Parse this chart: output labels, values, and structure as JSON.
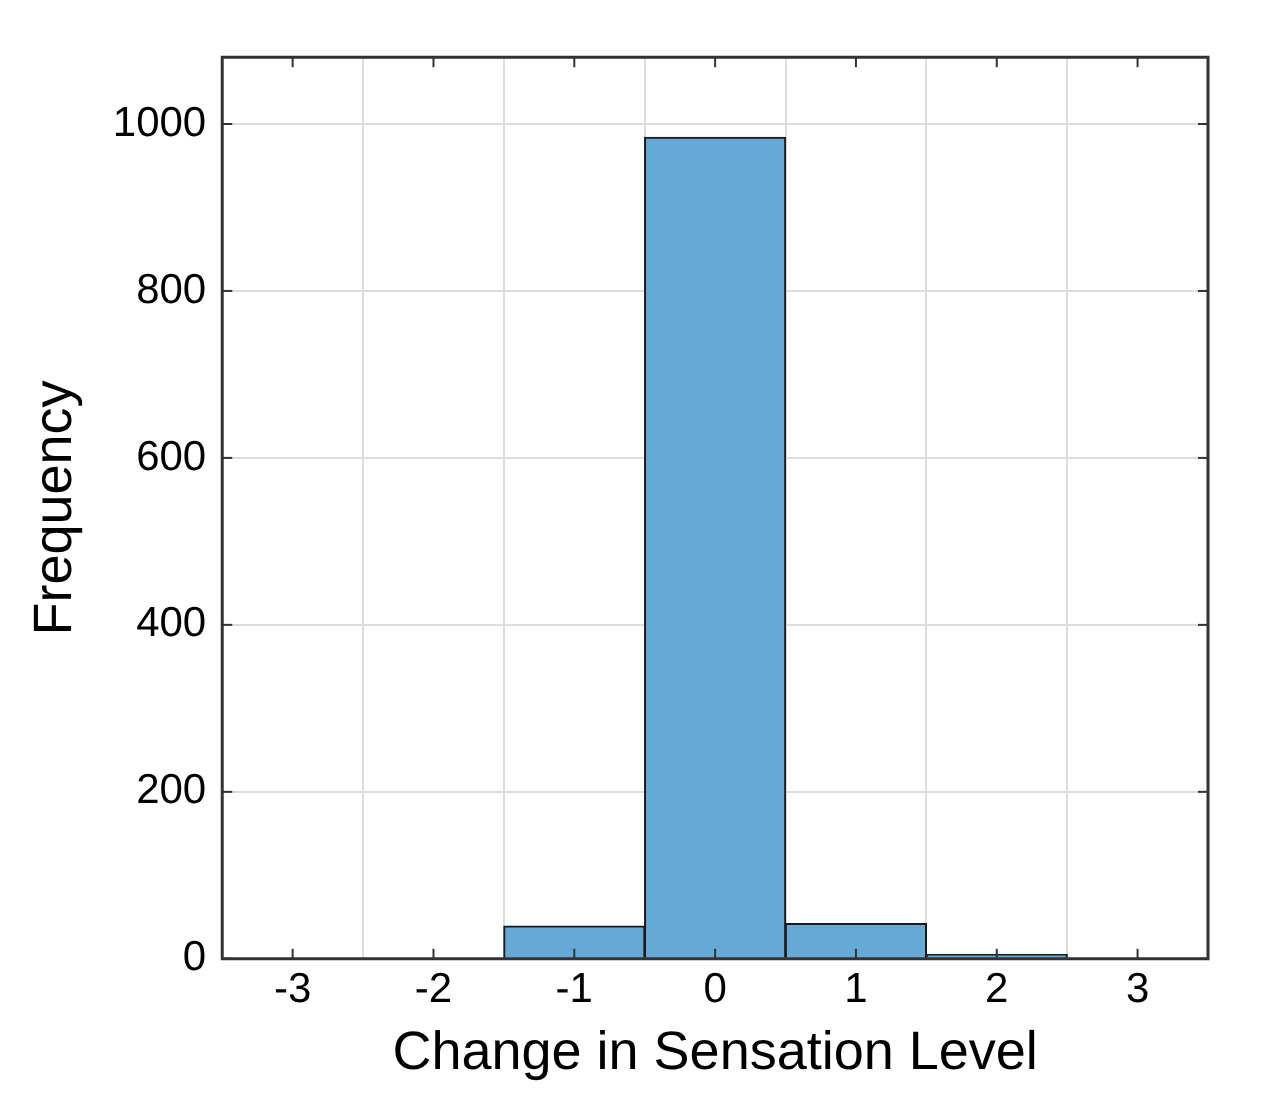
{
  "chart_data": {
    "type": "histogram",
    "xlabel": "Change in Sensation Level",
    "ylabel": "Frequency",
    "bins": [
      -1.5,
      -0.5,
      0.5,
      1.5,
      2.5
    ],
    "values": [
      39,
      984,
      42,
      5
    ],
    "color": "#65a9d7",
    "xlim": [
      -3.5,
      3.5
    ],
    "xticks": [
      -3,
      -2,
      -1,
      0,
      1,
      2,
      3
    ],
    "ylim": [
      0,
      1080
    ],
    "yticks": [
      0,
      200,
      400,
      600,
      800,
      1000
    ],
    "grid": true,
    "legend": false
  }
}
